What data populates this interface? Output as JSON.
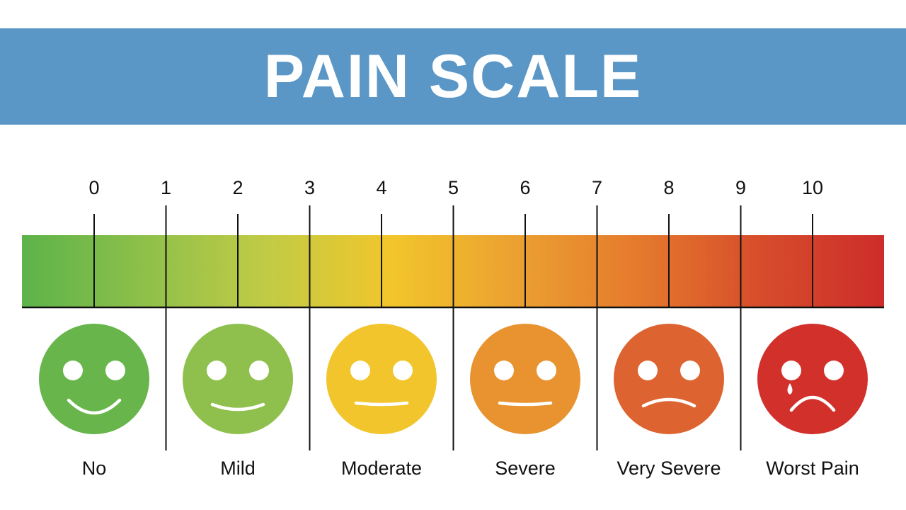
{
  "title": "PAIN SCALE",
  "ticks": [
    "0",
    "1",
    "2",
    "3",
    "4",
    "5",
    "6",
    "7",
    "8",
    "9",
    "10"
  ],
  "gradient_colors": [
    "#5cb34a",
    "#8ec04a",
    "#c2cb45",
    "#f2c62b",
    "#eba131",
    "#e57a2d",
    "#d64d2b",
    "#cd2d2a"
  ],
  "faces": [
    {
      "label": "No",
      "color": "#67b54b",
      "mouth": "big-smile",
      "icon": "smiling-face-icon"
    },
    {
      "label": "Mild",
      "color": "#8fc04d",
      "mouth": "smile",
      "icon": "slight-smile-face-icon"
    },
    {
      "label": "Moderate",
      "color": "#f1c52b",
      "mouth": "flat",
      "icon": "neutral-face-icon"
    },
    {
      "label": "Severe",
      "color": "#e8932f",
      "mouth": "flat",
      "icon": "flat-mouth-face-icon"
    },
    {
      "label": "Very Severe",
      "color": "#dd6430",
      "mouth": "frown",
      "icon": "frowning-face-icon"
    },
    {
      "label": "Worst Pain",
      "color": "#d1302b",
      "mouth": "big-frown",
      "tear": true,
      "icon": "crying-face-icon"
    }
  ],
  "colors": {
    "banner": "#5a97c6",
    "line": "#111111"
  }
}
